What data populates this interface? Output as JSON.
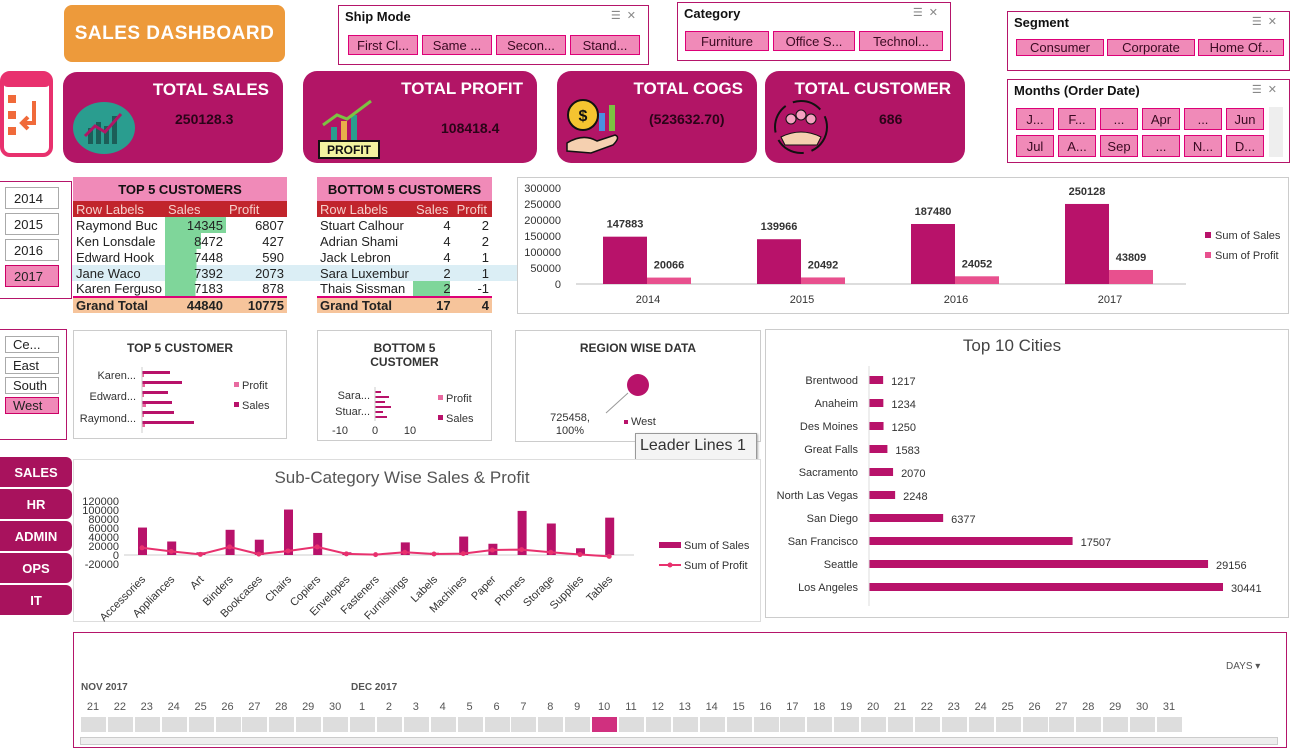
{
  "header": {
    "title": "SALES DASHBOARD"
  },
  "slicers": {
    "ship_mode": {
      "title": "Ship Mode",
      "items": [
        "First Cl...",
        "Same ...",
        "Secon...",
        "Stand..."
      ]
    },
    "category": {
      "title": "Category",
      "items": [
        "Furniture",
        "Office S...",
        "Technol..."
      ]
    },
    "segment": {
      "title": "Segment",
      "items": [
        "Consumer",
        "Corporate",
        "Home Of..."
      ]
    },
    "months": {
      "title": "Months (Order Date)",
      "items": [
        "J...",
        "F...",
        "...",
        "Apr",
        "...",
        "Jun",
        "Jul",
        "A...",
        "Sep",
        "...",
        "N...",
        "D..."
      ]
    },
    "years": {
      "items": [
        "2014",
        "2015",
        "2016",
        "2017"
      ],
      "selected": "2017"
    },
    "regions": {
      "items": [
        "Ce...",
        "East",
        "South",
        "West"
      ],
      "selected": "West"
    }
  },
  "kpis": [
    {
      "label": "TOTAL SALES",
      "value": "250128.3",
      "icon": "sales-chart-icon"
    },
    {
      "label": "TOTAL PROFIT",
      "value": "108418.4",
      "icon": "profit-icon",
      "icon_text": "PROFIT"
    },
    {
      "label": "TOTAL COGS",
      "value": "(523632.70)",
      "icon": "cogs-dollar-icon"
    },
    {
      "label": "TOTAL CUSTOMER",
      "value": "686",
      "icon": "customers-icon"
    }
  ],
  "top5": {
    "title": "TOP 5 CUSTOMERS",
    "headers": [
      "Row Labels",
      "Sales",
      "Profit"
    ],
    "rows": [
      [
        "Raymond Buc",
        "14345",
        "6807"
      ],
      [
        "Ken Lonsdale",
        "8472",
        "427"
      ],
      [
        "Edward Hook",
        "7448",
        "590"
      ],
      [
        "Jane Waco",
        "7392",
        "2073"
      ],
      [
        "Karen Ferguso",
        "7183",
        "878"
      ]
    ],
    "total": [
      "Grand Total",
      "44840",
      "10775"
    ]
  },
  "bottom5": {
    "title": "BOTTOM 5 CUSTOMERS",
    "headers": [
      "Row Labels",
      "Sales",
      "Profit"
    ],
    "rows": [
      [
        "Stuart Calhour",
        "4",
        "2"
      ],
      [
        "Adrian Shami",
        "4",
        "2"
      ],
      [
        "Jack Lebron",
        "4",
        "1"
      ],
      [
        "Sara Luxembur",
        "2",
        "1"
      ],
      [
        "Thais Sissman",
        "2",
        "-1"
      ]
    ],
    "total": [
      "Grand Total",
      "17",
      "4"
    ]
  },
  "chart_data": [
    {
      "type": "bar",
      "categories": [
        "2014",
        "2015",
        "2016",
        "2017"
      ],
      "series": [
        {
          "name": "Sum of Sales",
          "values": [
            147883,
            139966,
            187480,
            250128
          ],
          "color": "#b8126a"
        },
        {
          "name": "Sum of Profit",
          "values": [
            20066,
            20492,
            24052,
            43809
          ],
          "color": "#e8508e"
        }
      ],
      "yticks": [
        "0",
        "50000",
        "100000",
        "150000",
        "200000",
        "250000",
        "300000"
      ],
      "ylim": [
        0,
        300000
      ],
      "legend": "right"
    },
    {
      "type": "bar",
      "orientation": "horizontal",
      "title": "TOP 5 CUSTOMER",
      "categories": [
        "Raymond...",
        "Edward...",
        "Karen..."
      ],
      "legend": [
        "Profit",
        "Sales"
      ]
    },
    {
      "type": "bar",
      "orientation": "horizontal",
      "title": "BOTTOM 5 CUSTOMER",
      "categories": [
        "Stuar...",
        "Sara..."
      ],
      "xticks": [
        "-10",
        "0",
        "10"
      ],
      "legend": [
        "Profit",
        "Sales"
      ]
    },
    {
      "type": "pie",
      "title": "REGION WISE DATA",
      "slices": [
        {
          "name": "West",
          "value": 725458,
          "pct": "100%"
        }
      ],
      "label": "725458,\n100%",
      "tooltip": "Leader Lines 1"
    },
    {
      "type": "bar",
      "orientation": "horizontal",
      "title": "Top 10 Cities",
      "categories": [
        "Brentwood",
        "Anaheim",
        "Des Moines",
        "Great Falls",
        "Sacramento",
        "North Las Vegas",
        "San Diego",
        "San Francisco",
        "Seattle",
        "Los Angeles"
      ],
      "values": [
        1217,
        1234,
        1250,
        1583,
        2070,
        2248,
        6377,
        17507,
        29156,
        30441
      ]
    },
    {
      "type": "bar+line",
      "title": "Sub-Category Wise Sales & Profit",
      "categories": [
        "Accessories",
        "Appliances",
        "Art",
        "Binders",
        "Bookcases",
        "Chairs",
        "Copiers",
        "Envelopes",
        "Fasteners",
        "Furnishings",
        "Labels",
        "Machines",
        "Paper",
        "Phones",
        "Storage",
        "Supplies",
        "Tables"
      ],
      "series": [
        {
          "name": "Sum of Sales",
          "type": "bar",
          "values": [
            61000,
            30000,
            6000,
            56000,
            34000,
            101000,
            49000,
            6000,
            2000,
            28000,
            5000,
            41000,
            25000,
            98000,
            70000,
            15000,
            83000
          ]
        },
        {
          "name": "Sum of Profit",
          "type": "line",
          "values": [
            16000,
            8000,
            1500,
            18000,
            2000,
            9000,
            18000,
            2500,
            900,
            6000,
            2300,
            3000,
            11000,
            12000,
            6000,
            1000,
            -3000
          ]
        }
      ],
      "yticks": [
        "120000",
        "100000",
        "80000",
        "60000",
        "40000",
        "20000",
        "0",
        "-20000"
      ],
      "ylim": [
        -20000,
        120000
      ]
    }
  ],
  "nav": [
    "SALES",
    "HR",
    "ADMIN",
    "OPS",
    "IT"
  ],
  "timeline": {
    "unit": "DAYS",
    "month1": "NOV 2017",
    "month2": "DEC 2017",
    "days": [
      "21",
      "22",
      "23",
      "24",
      "25",
      "26",
      "27",
      "28",
      "29",
      "30",
      "1",
      "2",
      "3",
      "4",
      "5",
      "6",
      "7",
      "8",
      "9",
      "10",
      "11",
      "12",
      "13",
      "14",
      "15",
      "16",
      "17",
      "18",
      "19",
      "20",
      "21",
      "22",
      "23",
      "24",
      "25",
      "26",
      "27",
      "28",
      "29",
      "30",
      "31"
    ],
    "selected": "10"
  }
}
